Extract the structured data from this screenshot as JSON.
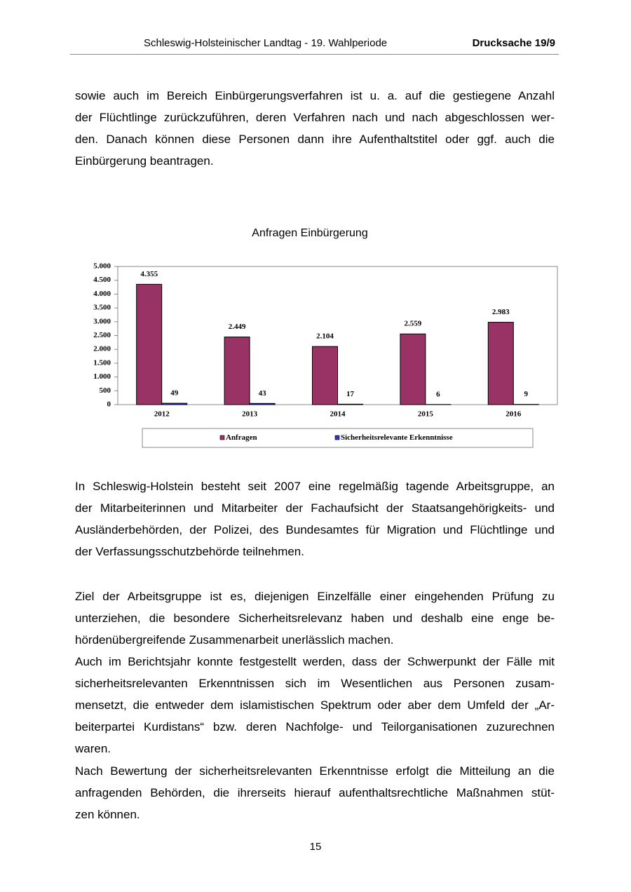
{
  "header": {
    "title": "Schleswig-Holsteinischer Landtag - 19. Wahlperiode",
    "doc_number": "Drucksache 19/9"
  },
  "blocks": [
    {
      "lines": [
        "sowie auch im Bereich Einbürgerungsverfahren ist u. a. auf die gestiegene Anzahl",
        "der Flüchtlinge zurückzuführen, deren Verfahren nach und nach abgeschlossen wer-",
        "den. Danach können diese Personen dann ihre Aufenthaltstitel oder ggf. auch die",
        "Einbürgerung beantragen."
      ]
    },
    {
      "lines": [
        "In Schleswig-Holstein besteht seit 2007 eine regelmäßig tagende Arbeitsgruppe, an",
        "der Mitarbeiterinnen und Mitarbeiter der Fachaufsicht der Staatsangehörigkeits- und",
        "Ausländerbehörden, der Polizei, des Bundesamtes für Migration und Flüchtlinge und",
        "der Verfassungsschutzbehörde teilnehmen."
      ]
    },
    {
      "lines": [
        "Ziel der Arbeitsgruppe ist es, diejenigen Einzelfälle einer eingehenden Prüfung zu",
        "unterziehen, die besondere Sicherheitsrelevanz haben und deshalb eine enge be-",
        "hördenübergreifende Zusammenarbeit unerlässlich machen."
      ]
    },
    {
      "lines": [
        "Auch im Berichtsjahr konnte festgestellt werden, dass der Schwerpunkt der Fälle mit",
        "sicherheitsrelevanten Erkenntnissen sich im Wesentlichen aus Personen zusam-",
        "mensetzt, die entweder dem islamistischen Spektrum oder aber dem Umfeld der „Ar-",
        "beiterpartei Kurdistans“ bzw. deren Nachfolge- und Teilorganisationen zuzurechnen",
        "waren."
      ]
    },
    {
      "lines": [
        "Nach Bewertung der sicherheitsrelevanten Erkenntnisse erfolgt die Mitteilung an die",
        "anfragenden Behörden, die ihrerseits hierauf aufenthaltsrechtliche Maßnahmen stüt-",
        "zen können."
      ]
    }
  ],
  "chart_data": {
    "type": "bar",
    "title": "Anfragen Einbürgerung",
    "categories": [
      "2012",
      "2013",
      "2014",
      "2015",
      "2016"
    ],
    "series": [
      {
        "name": "Anfragen",
        "color": "#993366",
        "values": [
          4355,
          2449,
          2104,
          2559,
          2983
        ],
        "value_labels": [
          "4.355",
          "2.449",
          "2.104",
          "2.559",
          "2.983"
        ]
      },
      {
        "name": "Sicherheitsrelevante Erkenntnisse",
        "color": "#3333cc",
        "values": [
          49,
          43,
          17,
          6,
          9
        ]
      }
    ],
    "ylim": [
      0,
      5000
    ],
    "yticks": [
      0,
      500,
      {
        "value": 1000,
        "label": "1.000"
      },
      {
        "value": 1500,
        "label": "1.500"
      },
      {
        "value": 2000,
        "label": "2.000"
      },
      {
        "value": 2500,
        "label": "2.500"
      },
      {
        "value": 3000,
        "label": "3.000"
      },
      {
        "value": 3500,
        "label": "3.500"
      },
      {
        "value": 4000,
        "label": "4.000"
      },
      {
        "value": 4500,
        "label": "4.500"
      },
      {
        "value": 5000,
        "label": "5.000"
      }
    ],
    "grid": false,
    "legend": "bottom"
  },
  "page_number": "15"
}
